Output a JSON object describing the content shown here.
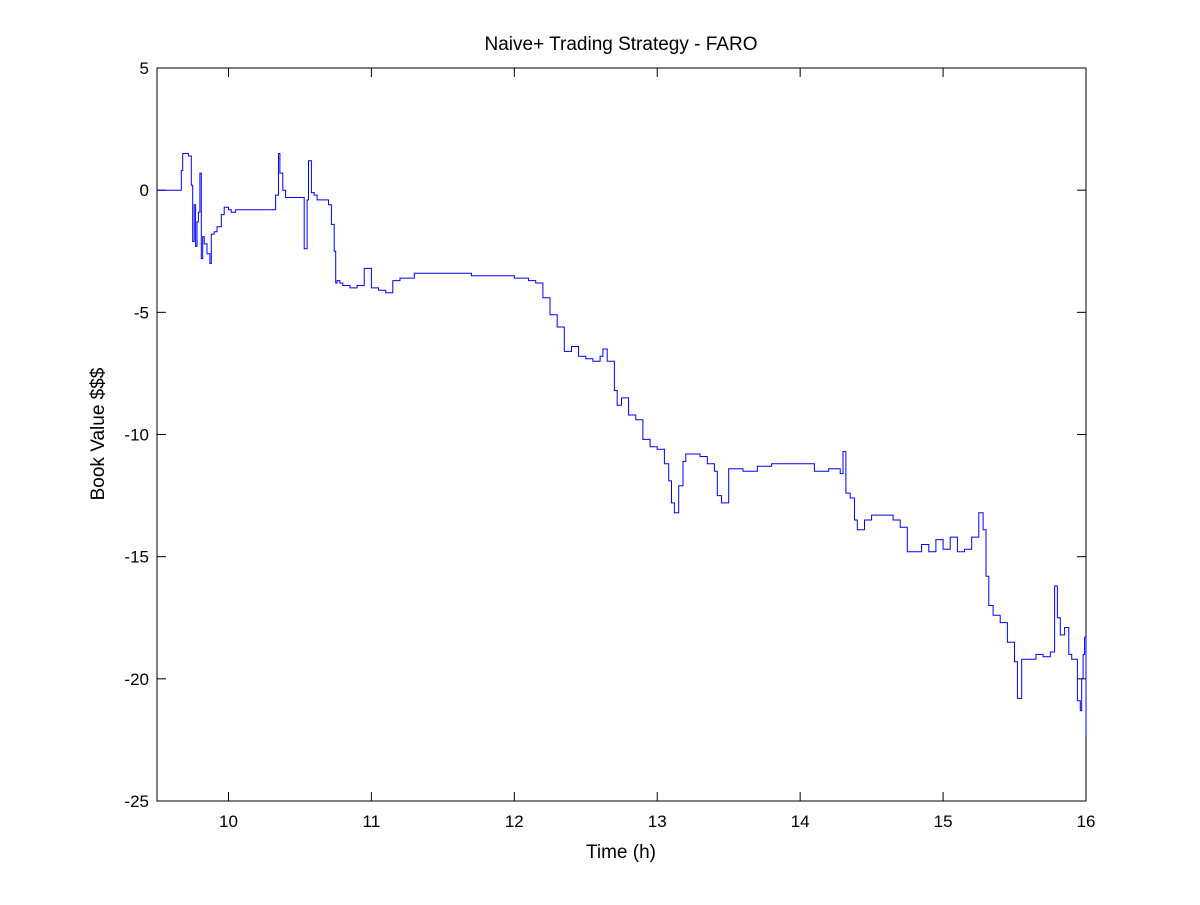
{
  "chart_data": {
    "type": "line",
    "title": "Naive+ Trading Strategy - FARO",
    "xlabel": "Time (h)",
    "ylabel": "Book Value $$$",
    "xlim": [
      9.5,
      16
    ],
    "ylim": [
      -25,
      5
    ],
    "x_ticks": [
      10,
      11,
      12,
      13,
      14,
      15,
      16
    ],
    "x_tick_labels": [
      "10",
      "11",
      "12",
      "13",
      "14",
      "15",
      "16"
    ],
    "y_ticks": [
      5,
      0,
      -5,
      -10,
      -15,
      -20,
      -25
    ],
    "y_tick_labels": [
      "5",
      "0",
      "-5",
      "-10",
      "-15",
      "-20",
      "-25"
    ],
    "grid": false,
    "legend": "none",
    "series": [
      {
        "color": "#0000ff",
        "x": [
          9.5,
          9.65,
          9.67,
          9.68,
          9.69,
          9.7,
          9.72,
          9.74,
          9.75,
          9.76,
          9.77,
          9.78,
          9.79,
          9.8,
          9.81,
          9.82,
          9.83,
          9.85,
          9.87,
          9.88,
          9.9,
          9.92,
          9.95,
          9.97,
          10.0,
          10.02,
          10.05,
          10.1,
          10.2,
          10.3,
          10.33,
          10.35,
          10.36,
          10.38,
          10.4,
          10.42,
          10.45,
          10.5,
          10.52,
          10.53,
          10.55,
          10.56,
          10.58,
          10.6,
          10.62,
          10.65,
          10.7,
          10.72,
          10.74,
          10.75,
          10.76,
          10.78,
          10.8,
          10.85,
          10.9,
          10.95,
          11.0,
          11.05,
          11.1,
          11.15,
          11.2,
          11.3,
          11.4,
          11.5,
          11.6,
          11.7,
          11.8,
          11.9,
          12.0,
          12.1,
          12.15,
          12.2,
          12.25,
          12.3,
          12.35,
          12.4,
          12.45,
          12.5,
          12.55,
          12.6,
          12.62,
          12.65,
          12.7,
          12.72,
          12.75,
          12.8,
          12.85,
          12.9,
          12.95,
          13.0,
          13.05,
          13.08,
          13.1,
          13.12,
          13.15,
          13.18,
          13.2,
          13.3,
          13.35,
          13.4,
          13.42,
          13.45,
          13.5,
          13.6,
          13.7,
          13.8,
          13.9,
          14.0,
          14.1,
          14.2,
          14.25,
          14.28,
          14.3,
          14.32,
          14.35,
          14.38,
          14.4,
          14.45,
          14.5,
          14.6,
          14.65,
          14.7,
          14.75,
          14.8,
          14.85,
          14.9,
          14.95,
          15.0,
          15.05,
          15.1,
          15.15,
          15.2,
          15.25,
          15.28,
          15.3,
          15.32,
          15.35,
          15.4,
          15.45,
          15.5,
          15.52,
          15.55,
          15.6,
          15.65,
          15.7,
          15.75,
          15.78,
          15.8,
          15.82,
          15.85,
          15.88,
          15.9,
          15.92,
          15.94,
          15.96,
          15.97,
          15.98,
          15.99,
          16.0
        ],
        "y": [
          0,
          0,
          0.8,
          1.5,
          1.5,
          1.5,
          1.4,
          0.2,
          -2.1,
          -0.6,
          -2.3,
          -1.3,
          -0.9,
          0.7,
          -2.8,
          -1.9,
          -2.2,
          -2.6,
          -3.0,
          -1.8,
          -1.7,
          -1.5,
          -1.0,
          -0.7,
          -0.8,
          -0.9,
          -0.8,
          -0.8,
          -0.8,
          -0.8,
          -0.2,
          1.5,
          0.7,
          0.0,
          -0.3,
          -0.3,
          -0.3,
          -0.3,
          -0.3,
          -2.4,
          -0.4,
          1.2,
          -0.1,
          -0.2,
          -0.4,
          -0.4,
          -0.6,
          -1.4,
          -2.5,
          -3.8,
          -3.7,
          -3.8,
          -3.9,
          -4.0,
          -3.9,
          -3.2,
          -4.0,
          -4.1,
          -4.2,
          -3.7,
          -3.6,
          -3.4,
          -3.4,
          -3.4,
          -3.4,
          -3.5,
          -3.5,
          -3.5,
          -3.6,
          -3.7,
          -3.8,
          -4.4,
          -5.1,
          -5.6,
          -6.6,
          -6.4,
          -6.8,
          -6.9,
          -7.0,
          -6.8,
          -6.5,
          -7.0,
          -8.2,
          -8.8,
          -8.5,
          -9.2,
          -9.4,
          -10.2,
          -10.5,
          -10.6,
          -11.2,
          -11.9,
          -12.8,
          -13.2,
          -12.1,
          -11.1,
          -10.8,
          -10.9,
          -11.2,
          -11.5,
          -12.5,
          -12.8,
          -11.4,
          -11.5,
          -11.3,
          -11.2,
          -11.2,
          -11.2,
          -11.5,
          -11.4,
          -11.4,
          -11.6,
          -10.7,
          -12.4,
          -12.6,
          -13.5,
          -13.9,
          -13.5,
          -13.3,
          -13.3,
          -13.5,
          -13.8,
          -14.8,
          -14.8,
          -14.5,
          -14.8,
          -14.3,
          -14.7,
          -14.2,
          -14.8,
          -14.7,
          -14.2,
          -13.2,
          -13.9,
          -15.8,
          -17.0,
          -17.4,
          -17.7,
          -18.5,
          -19.3,
          -20.8,
          -19.2,
          -19.2,
          -19.0,
          -19.1,
          -18.9,
          -16.2,
          -17.5,
          -18.2,
          -17.9,
          -19.0,
          -19.2,
          -19.2,
          -20.9,
          -21.3,
          -20.0,
          -19.0,
          -18.3,
          -22.3
        ]
      }
    ]
  }
}
